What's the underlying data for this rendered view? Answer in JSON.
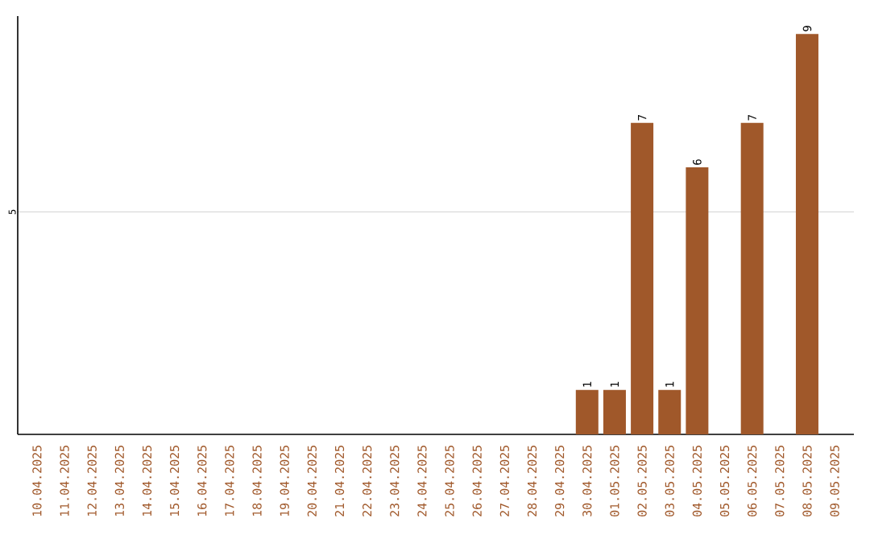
{
  "chart_data": {
    "type": "bar",
    "categories": [
      "10.04.2025",
      "11.04.2025",
      "12.04.2025",
      "13.04.2025",
      "14.04.2025",
      "15.04.2025",
      "16.04.2025",
      "17.04.2025",
      "18.04.2025",
      "19.04.2025",
      "20.04.2025",
      "21.04.2025",
      "22.04.2025",
      "23.04.2025",
      "24.04.2025",
      "25.04.2025",
      "26.04.2025",
      "27.04.2025",
      "28.04.2025",
      "29.04.2025",
      "30.04.2025",
      "01.05.2025",
      "02.05.2025",
      "03.05.2025",
      "04.05.2025",
      "05.05.2025",
      "06.05.2025",
      "07.05.2025",
      "08.05.2025",
      "09.05.2025"
    ],
    "values": [
      null,
      null,
      null,
      null,
      null,
      null,
      null,
      null,
      null,
      null,
      null,
      null,
      null,
      null,
      null,
      null,
      null,
      null,
      null,
      null,
      1,
      1,
      7,
      1,
      6,
      null,
      7,
      null,
      9,
      null
    ],
    "color": "#a0582a",
    "ylim": [
      0,
      9.4
    ],
    "yticks": [
      5
    ],
    "grid": "y",
    "data_labels": true
  }
}
